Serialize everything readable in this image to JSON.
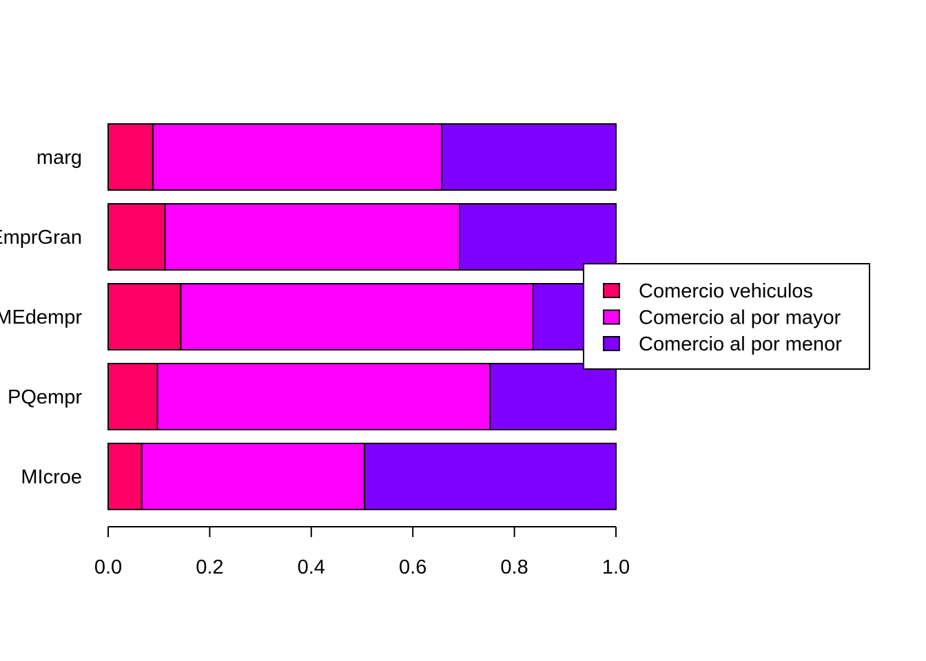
{
  "chart_data": {
    "type": "bar",
    "orientation": "horizontal",
    "stacked": true,
    "title": "",
    "xlabel": "",
    "ylabel": "",
    "xlim": [
      0,
      1
    ],
    "x_ticks": [
      "0.0",
      "0.2",
      "0.4",
      "0.6",
      "0.8",
      "1.0"
    ],
    "categories": [
      "marg",
      "EmprGran",
      "MEdempr",
      "PQempr",
      "MIcroe"
    ],
    "series": [
      {
        "name": "Comercio vehiculos",
        "color": "#FF0066",
        "values": [
          0.088,
          0.112,
          0.143,
          0.097,
          0.066
        ]
      },
      {
        "name": "Comercio al por mayor",
        "color": "#FF00FF",
        "values": [
          0.569,
          0.58,
          0.694,
          0.655,
          0.439
        ]
      },
      {
        "name": "Comercio al por menor",
        "color": "#8000FF",
        "values": [
          0.343,
          0.308,
          0.163,
          0.248,
          0.495
        ]
      }
    ],
    "legend_position": "right",
    "grid": false
  }
}
